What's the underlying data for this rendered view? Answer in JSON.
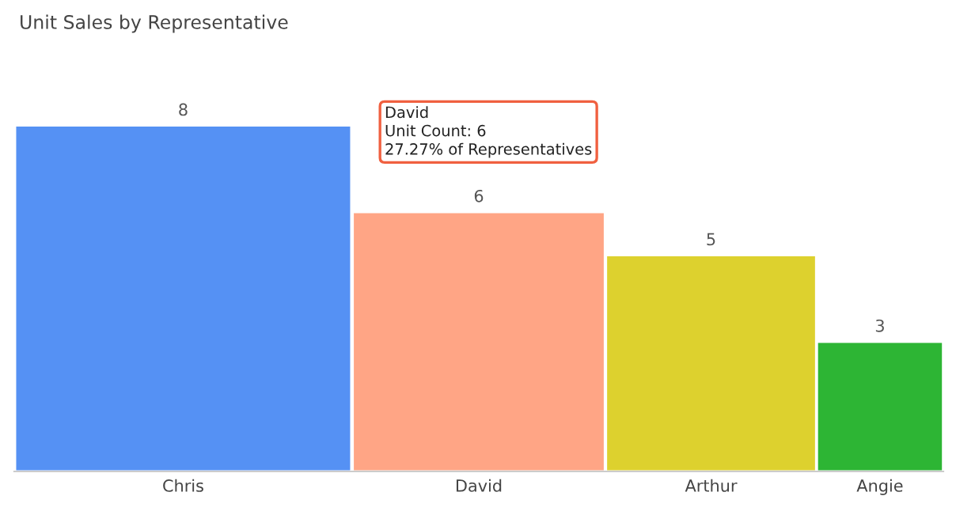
{
  "chart_data": {
    "type": "bar",
    "title": "Unit Sales by Representative",
    "categories": [
      "Chris",
      "David",
      "Arthur",
      "Angie"
    ],
    "values": [
      8,
      6,
      5,
      3
    ],
    "colors": [
      "#5591f4",
      "#ffa585",
      "#ddd12e",
      "#2db534"
    ],
    "data_labels": true,
    "annotations": [
      "David\nUnit Count: 6\n27.27% of Representatives"
    ]
  }
}
